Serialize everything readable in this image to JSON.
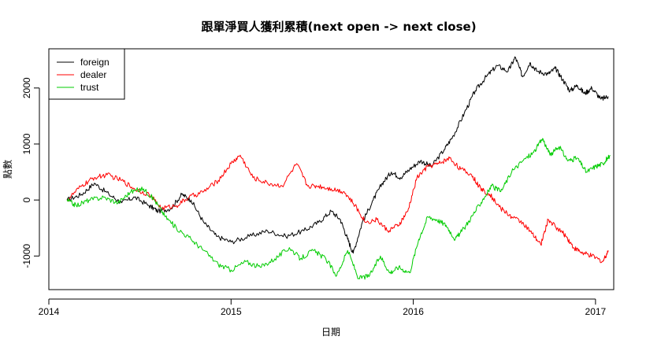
{
  "chart_data": {
    "type": "line",
    "title": "跟單淨買人獲利累積(next open -> next close)",
    "xlabel": "日期",
    "ylabel": "點數",
    "xlim": [
      2014.0,
      2017.1
    ],
    "ylim": [
      -1600,
      2700
    ],
    "x_ticks": [
      {
        "value": 2014,
        "label": "2014"
      },
      {
        "value": 2015,
        "label": "2015"
      },
      {
        "value": 2016,
        "label": "2016"
      },
      {
        "value": 2017,
        "label": "2017"
      }
    ],
    "y_ticks": [
      {
        "value": -1000,
        "label": "-1000"
      },
      {
        "value": 0,
        "label": "0"
      },
      {
        "value": 1000,
        "label": "1000"
      },
      {
        "value": 2000,
        "label": "2000"
      }
    ],
    "grid": false,
    "legend_position": "top-left",
    "series": [
      {
        "name": "foreign",
        "color": "#000000",
        "points": [
          [
            2014.1,
            0
          ],
          [
            2014.18,
            100
          ],
          [
            2014.25,
            300
          ],
          [
            2014.33,
            100
          ],
          [
            2014.4,
            -50
          ],
          [
            2014.47,
            50
          ],
          [
            2014.55,
            -100
          ],
          [
            2014.6,
            -200
          ],
          [
            2014.67,
            -150
          ],
          [
            2014.73,
            100
          ],
          [
            2014.78,
            0
          ],
          [
            2014.85,
            -400
          ],
          [
            2014.92,
            -650
          ],
          [
            2015.0,
            -750
          ],
          [
            2015.1,
            -650
          ],
          [
            2015.2,
            -550
          ],
          [
            2015.3,
            -650
          ],
          [
            2015.4,
            -550
          ],
          [
            2015.48,
            -400
          ],
          [
            2015.55,
            -200
          ],
          [
            2015.6,
            -350
          ],
          [
            2015.64,
            -700
          ],
          [
            2015.67,
            -950
          ],
          [
            2015.72,
            -400
          ],
          [
            2015.78,
            0
          ],
          [
            2015.83,
            300
          ],
          [
            2015.88,
            500
          ],
          [
            2015.93,
            400
          ],
          [
            2015.98,
            550
          ],
          [
            2016.04,
            700
          ],
          [
            2016.1,
            600
          ],
          [
            2016.17,
            900
          ],
          [
            2016.22,
            1150
          ],
          [
            2016.28,
            1550
          ],
          [
            2016.34,
            1950
          ],
          [
            2016.4,
            2200
          ],
          [
            2016.46,
            2400
          ],
          [
            2016.52,
            2300
          ],
          [
            2016.56,
            2550
          ],
          [
            2016.6,
            2200
          ],
          [
            2016.64,
            2450
          ],
          [
            2016.68,
            2300
          ],
          [
            2016.74,
            2250
          ],
          [
            2016.78,
            2350
          ],
          [
            2016.82,
            2150
          ],
          [
            2016.86,
            1950
          ],
          [
            2016.9,
            2050
          ],
          [
            2016.94,
            1900
          ],
          [
            2016.98,
            2000
          ],
          [
            2017.03,
            1800
          ],
          [
            2017.07,
            1850
          ]
        ]
      },
      {
        "name": "dealer",
        "color": "#ff0000",
        "points": [
          [
            2014.1,
            0
          ],
          [
            2014.18,
            250
          ],
          [
            2014.25,
            400
          ],
          [
            2014.32,
            450
          ],
          [
            2014.4,
            350
          ],
          [
            2014.47,
            200
          ],
          [
            2014.55,
            100
          ],
          [
            2014.62,
            -150
          ],
          [
            2014.7,
            -100
          ],
          [
            2014.77,
            50
          ],
          [
            2014.85,
            150
          ],
          [
            2014.93,
            350
          ],
          [
            2015.0,
            650
          ],
          [
            2015.05,
            800
          ],
          [
            2015.12,
            400
          ],
          [
            2015.2,
            300
          ],
          [
            2015.28,
            250
          ],
          [
            2015.36,
            650
          ],
          [
            2015.42,
            250
          ],
          [
            2015.48,
            250
          ],
          [
            2015.55,
            200
          ],
          [
            2015.62,
            150
          ],
          [
            2015.68,
            -100
          ],
          [
            2015.74,
            -400
          ],
          [
            2015.8,
            -350
          ],
          [
            2015.86,
            -550
          ],
          [
            2015.92,
            -450
          ],
          [
            2015.97,
            -200
          ],
          [
            2016.02,
            400
          ],
          [
            2016.08,
            600
          ],
          [
            2016.14,
            650
          ],
          [
            2016.2,
            750
          ],
          [
            2016.26,
            550
          ],
          [
            2016.32,
            450
          ],
          [
            2016.37,
            200
          ],
          [
            2016.42,
            100
          ],
          [
            2016.48,
            -150
          ],
          [
            2016.54,
            -300
          ],
          [
            2016.6,
            -400
          ],
          [
            2016.65,
            -600
          ],
          [
            2016.7,
            -800
          ],
          [
            2016.74,
            -350
          ],
          [
            2016.79,
            -500
          ],
          [
            2016.84,
            -650
          ],
          [
            2016.88,
            -850
          ],
          [
            2016.93,
            -950
          ],
          [
            2016.98,
            -1000
          ],
          [
            2017.04,
            -1100
          ],
          [
            2017.07,
            -900
          ]
        ]
      },
      {
        "name": "trust",
        "color": "#00cc00",
        "points": [
          [
            2014.1,
            0
          ],
          [
            2014.15,
            -100
          ],
          [
            2014.22,
            0
          ],
          [
            2014.3,
            50
          ],
          [
            2014.38,
            -50
          ],
          [
            2014.45,
            150
          ],
          [
            2014.52,
            200
          ],
          [
            2014.58,
            0
          ],
          [
            2014.64,
            -300
          ],
          [
            2014.7,
            -500
          ],
          [
            2014.78,
            -700
          ],
          [
            2014.85,
            -900
          ],
          [
            2014.93,
            -1150
          ],
          [
            2015.0,
            -1250
          ],
          [
            2015.08,
            -1100
          ],
          [
            2015.16,
            -1200
          ],
          [
            2015.24,
            -1050
          ],
          [
            2015.32,
            -850
          ],
          [
            2015.38,
            -1050
          ],
          [
            2015.45,
            -900
          ],
          [
            2015.52,
            -1050
          ],
          [
            2015.58,
            -1350
          ],
          [
            2015.64,
            -900
          ],
          [
            2015.7,
            -1400
          ],
          [
            2015.76,
            -1350
          ],
          [
            2015.82,
            -1000
          ],
          [
            2015.87,
            -1300
          ],
          [
            2015.92,
            -1200
          ],
          [
            2015.98,
            -1300
          ],
          [
            2016.03,
            -700
          ],
          [
            2016.08,
            -300
          ],
          [
            2016.13,
            -350
          ],
          [
            2016.18,
            -450
          ],
          [
            2016.23,
            -700
          ],
          [
            2016.28,
            -500
          ],
          [
            2016.33,
            -250
          ],
          [
            2016.38,
            0
          ],
          [
            2016.43,
            250
          ],
          [
            2016.48,
            150
          ],
          [
            2016.54,
            500
          ],
          [
            2016.6,
            700
          ],
          [
            2016.66,
            850
          ],
          [
            2016.71,
            1100
          ],
          [
            2016.75,
            800
          ],
          [
            2016.8,
            950
          ],
          [
            2016.85,
            700
          ],
          [
            2016.9,
            750
          ],
          [
            2016.95,
            500
          ],
          [
            2017.0,
            600
          ],
          [
            2017.04,
            650
          ],
          [
            2017.08,
            800
          ]
        ]
      }
    ]
  }
}
